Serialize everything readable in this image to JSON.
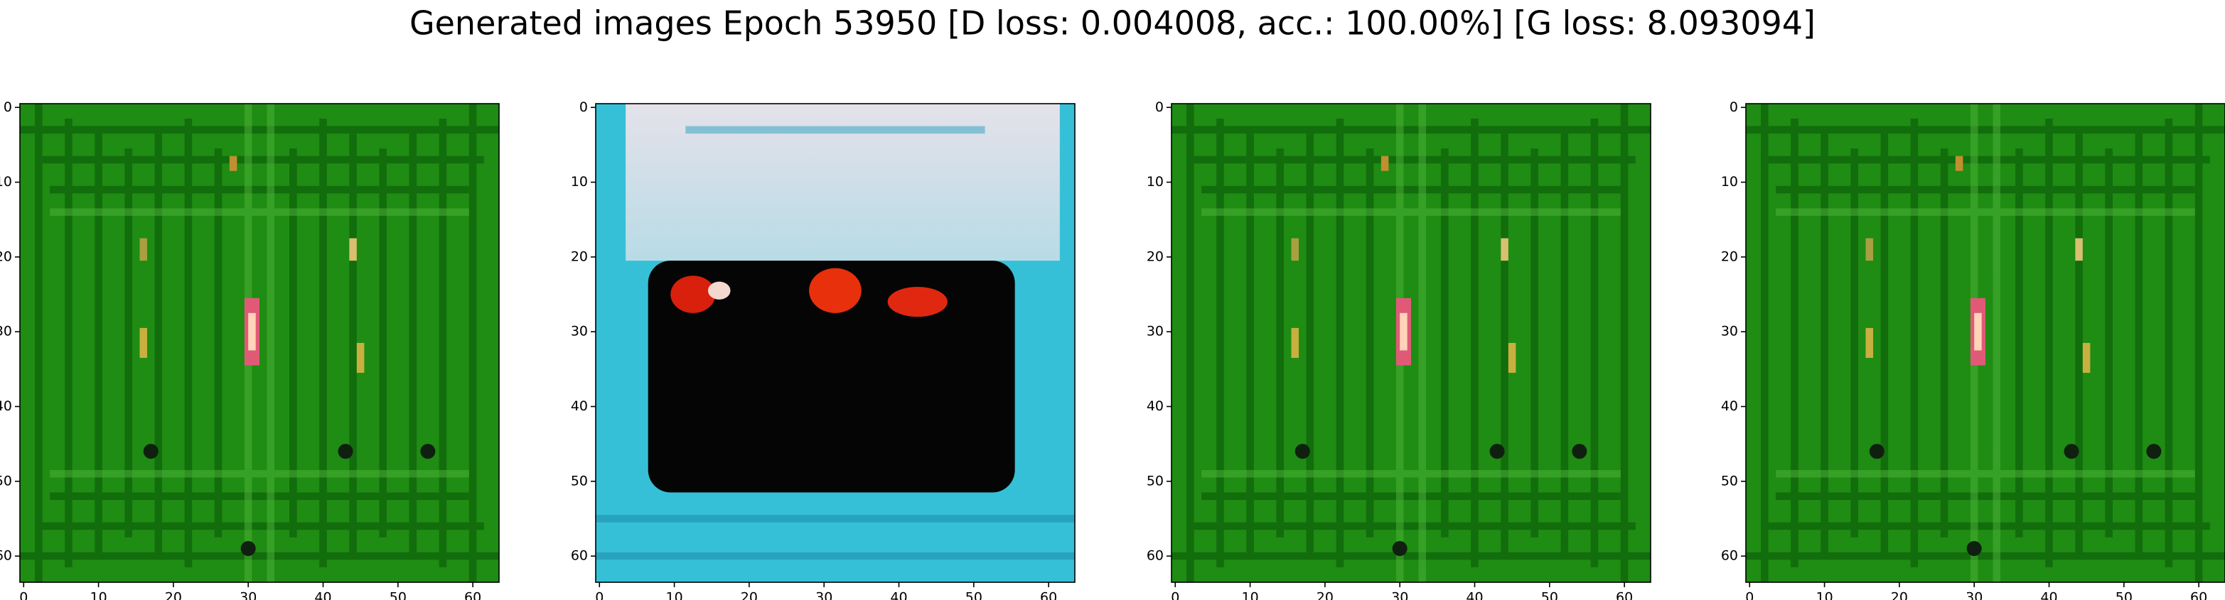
{
  "chart_data": {
    "type": "image",
    "title": "Generated images Epoch 53950 [D loss: 0.004008, acc.: 100.00%] [G loss: 8.093094]",
    "subplots": [
      {
        "xlim": [
          -0.5,
          63.5
        ],
        "ylim": [
          63.5,
          -0.5
        ],
        "xticks": [
          0,
          10,
          20,
          30,
          40,
          50,
          60
        ],
        "yticks": [
          0,
          10,
          20,
          30,
          40,
          50,
          60
        ]
      },
      {
        "xlim": [
          -0.5,
          63.5
        ],
        "ylim": [
          63.5,
          -0.5
        ],
        "xticks": [
          0,
          10,
          20,
          30,
          40,
          50,
          60
        ],
        "yticks": [
          0,
          10,
          20,
          30,
          40,
          50,
          60
        ]
      },
      {
        "xlim": [
          -0.5,
          63.5
        ],
        "ylim": [
          63.5,
          -0.5
        ],
        "xticks": [
          0,
          10,
          20,
          30,
          40,
          50,
          60
        ],
        "yticks": [
          0,
          10,
          20,
          30,
          40,
          50,
          60
        ]
      },
      {
        "xlim": [
          -0.5,
          63.5
        ],
        "ylim": [
          63.5,
          -0.5
        ],
        "xticks": [
          0,
          10,
          20,
          30,
          40,
          50,
          60
        ],
        "yticks": [
          0,
          10,
          20,
          30,
          40,
          50,
          60
        ]
      }
    ]
  }
}
